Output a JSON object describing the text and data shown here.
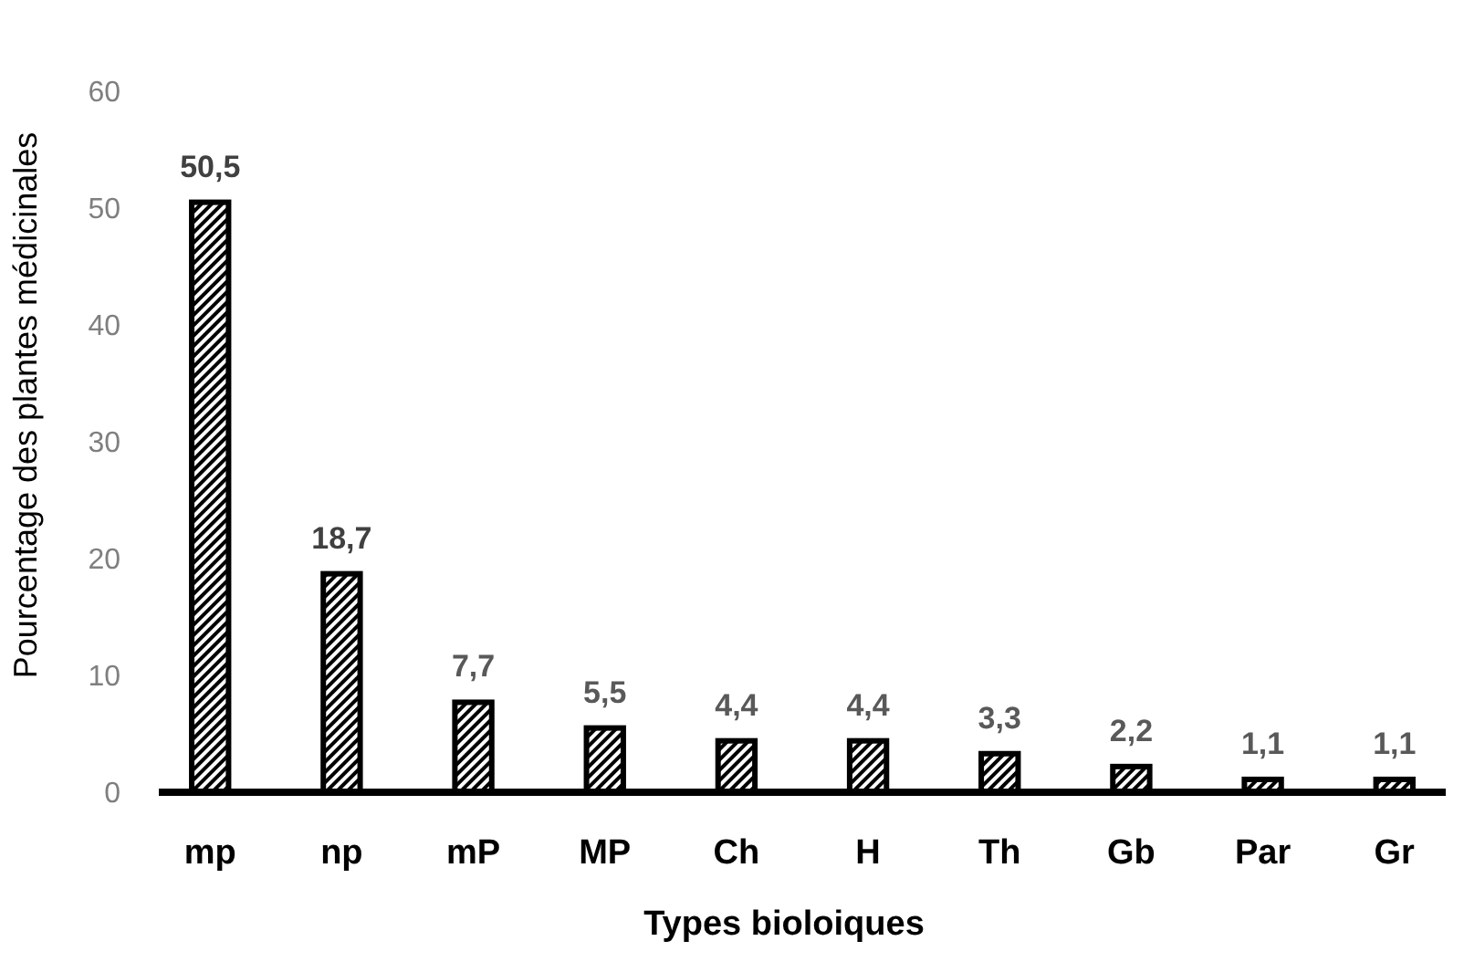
{
  "chart_data": {
    "type": "bar",
    "xlabel": "Types bioloiques",
    "ylabel": "Pourcentage des plantes médicinales",
    "categories": [
      "mp",
      "np",
      "mP",
      "MP",
      "Ch",
      "H",
      "Th",
      "Gb",
      "Par",
      "Gr"
    ],
    "values": [
      50.5,
      18.7,
      7.7,
      5.5,
      4.4,
      4.4,
      3.3,
      2.2,
      1.1,
      1.1
    ],
    "value_labels": [
      "50,5",
      "18,7",
      "7,7",
      "5,5",
      "4,4",
      "4,4",
      "3,3",
      "2,2",
      "1,1",
      "1,1"
    ],
    "color": "#000000",
    "ylim": [
      0,
      60
    ],
    "yticks": [
      0,
      10,
      20,
      30,
      40,
      50,
      60
    ],
    "grid": false
  }
}
